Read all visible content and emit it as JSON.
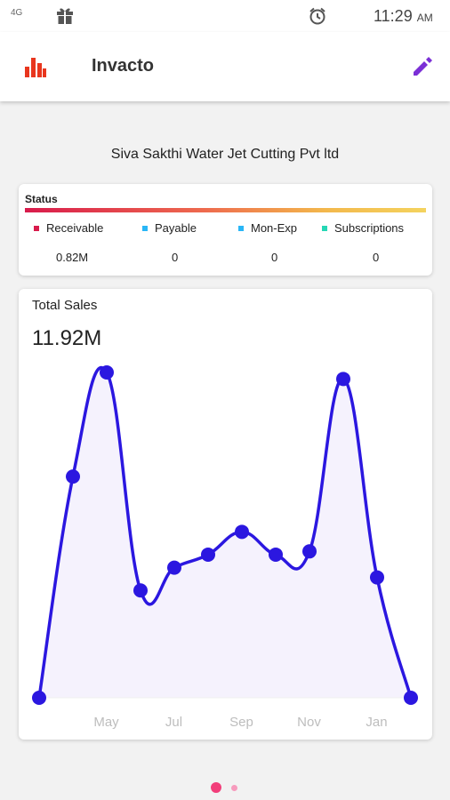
{
  "status_bar": {
    "network": "4G",
    "time": "11:29",
    "ampm": "AM",
    "icons": [
      "gift-icon",
      "alarm-icon"
    ]
  },
  "app_bar": {
    "title": "Invacto",
    "logo_icon": "bar-chart-icon",
    "edit_icon": "pencil-icon",
    "accent": "#7b2fd6",
    "logo_color": "#e8361e"
  },
  "company_name": "Siva Sakthi Water Jet Cutting Pvt ltd",
  "status_card": {
    "title": "Status",
    "items": [
      {
        "label": "Receivable",
        "value": "0.82M",
        "color": "#d81b4c"
      },
      {
        "label": "Payable",
        "value": "0",
        "color": "#29b6f6"
      },
      {
        "label": "Mon-Exp",
        "value": "0",
        "color": "#29b6f6"
      },
      {
        "label": "Subscriptions",
        "value": "0",
        "color": "#26d7b5"
      }
    ]
  },
  "sales_card": {
    "title": "Total Sales",
    "total": "11.92M"
  },
  "chart_data": {
    "type": "area",
    "title": "",
    "x_tick_labels": [
      "May",
      "Jul",
      "Sep",
      "Nov",
      "Jan"
    ],
    "x_tick_positions": [
      2,
      4,
      6,
      8,
      10
    ],
    "values": [
      0,
      0.68,
      1.0,
      0.33,
      0.4,
      0.44,
      0.51,
      0.44,
      0.45,
      0.98,
      0.37,
      0
    ],
    "ylim": [
      0,
      1.0
    ],
    "grid": false,
    "line_color": "#2b17e0",
    "fill_color": "#f5f2fd"
  },
  "pager": {
    "active": 0,
    "count": 2,
    "active_color": "#f23e7a",
    "inactive_color": "#f79bbd"
  }
}
